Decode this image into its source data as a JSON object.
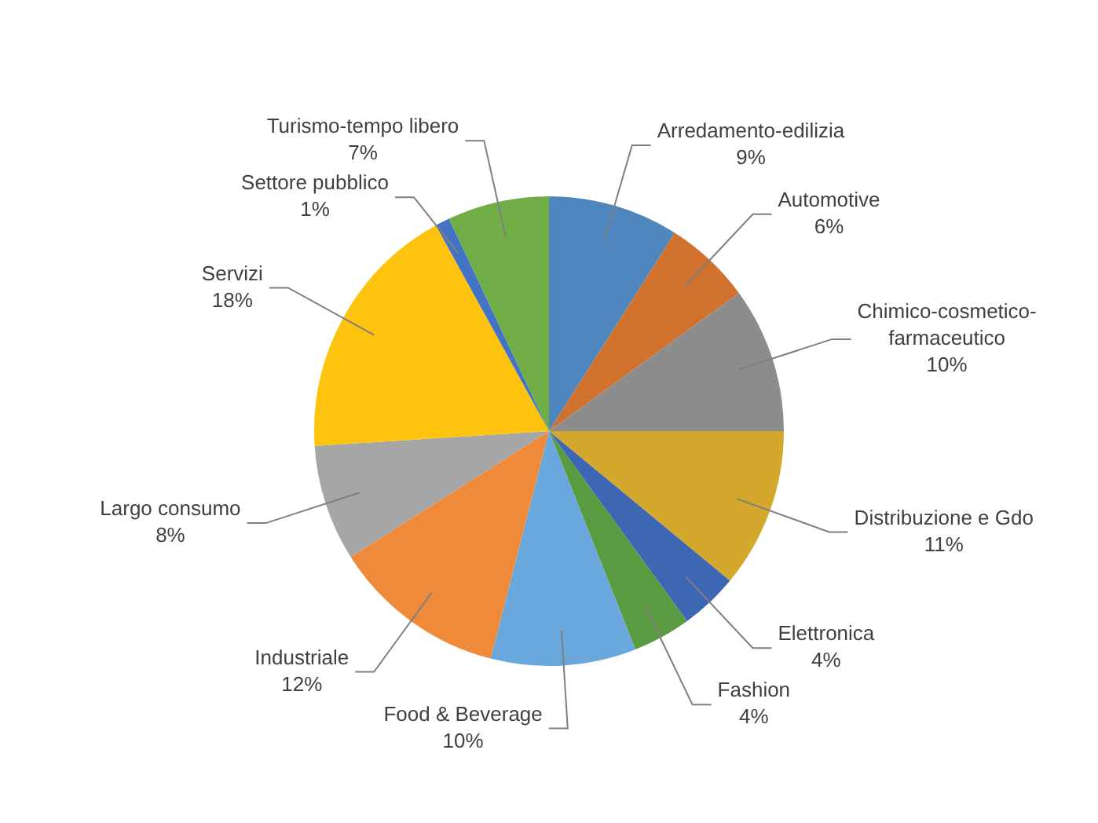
{
  "chart_data": {
    "type": "pie",
    "categories": [
      "Arredamento-edilizia",
      "Automotive",
      "Chimico-cosmetico-farmaceutico",
      "Distribuzione e Gdo",
      "Elettronica",
      "Fashion",
      "Food & Beverage",
      "Industriale",
      "Largo consumo",
      "Servizi",
      "Settore pubblico",
      "Turismo-tempo libero"
    ],
    "values": [
      9,
      6,
      10,
      11,
      4,
      4,
      10,
      12,
      8,
      18,
      1,
      7
    ],
    "value_labels": [
      "9%",
      "6%",
      "10%",
      "11%",
      "4%",
      "4%",
      "10%",
      "12%",
      "8%",
      "18%",
      "1%",
      "7%"
    ],
    "colors": [
      "#4f86be",
      "#d0712e",
      "#8c8c8c",
      "#d4a82c",
      "#3d66b3",
      "#5a9a40",
      "#6aa7dc",
      "#ef8a3a",
      "#a6a6a6",
      "#fdc30e",
      "#4472c4",
      "#70ad47"
    ],
    "legend": false
  }
}
